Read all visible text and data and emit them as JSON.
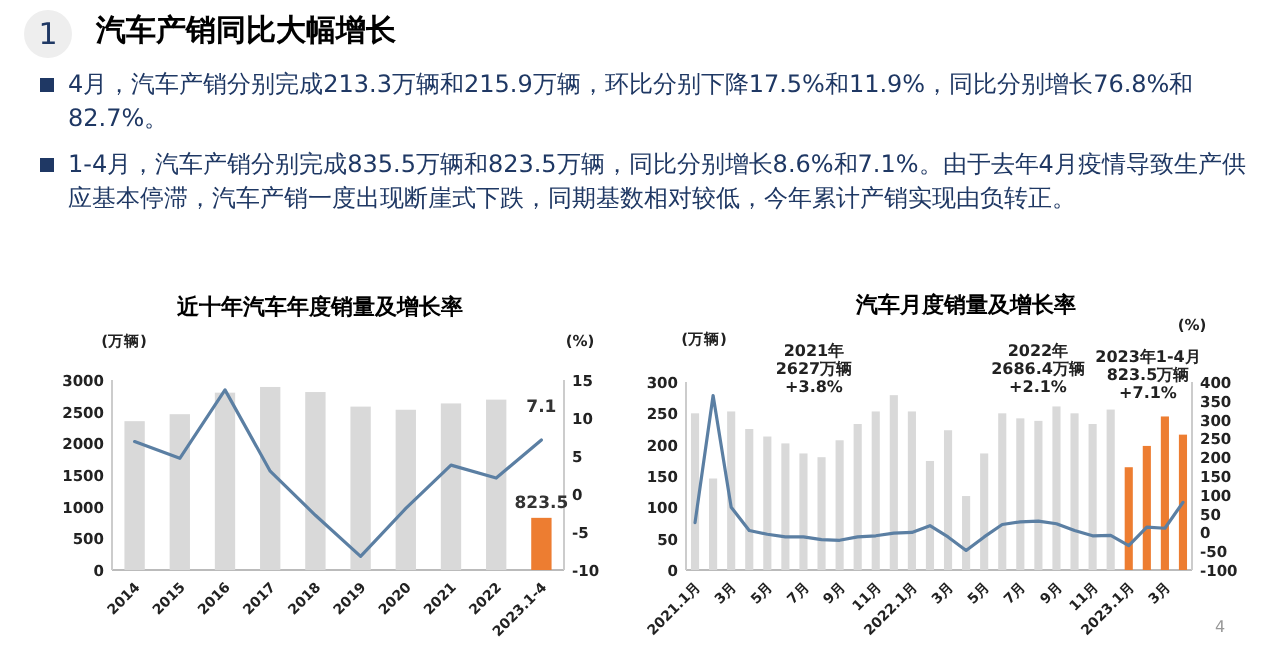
{
  "chart_data": [
    {
      "type": "bar",
      "title": "近十年汽车年度销量及增长率",
      "ylabel": "(万辆)",
      "y2label": "(%)",
      "annotations": [
        "1",
        "汽车产销同比大幅增长",
        "4月，汽车产销分别完成213.3万辆和215.9万辆，环比分别下降17.5%和11.9%，同比分别增长76.8%和82.7%。",
        "1-4月，汽车产销分别完成835.5万辆和823.5万辆，同比分别增长8.6%和7.1%。由于去年4月疫情导致生产供应基本停滞，汽车产销一度出现断崖式下跌，同期基数相对较低，今年累计产销实现由负转正。"
      ],
      "categories": [
        "2014",
        "2015",
        "2016",
        "2017",
        "2018",
        "2019",
        "2020",
        "2021",
        "2022",
        "2023.1-4"
      ],
      "series": [
        {
          "colors": [
            "#d9d9d9",
            "#d9d9d9",
            "#d9d9d9",
            "#d9d9d9",
            "#d9d9d9",
            "#d9d9d9",
            "#d9d9d9",
            "#d9d9d9",
            "#d9d9d9",
            "#ed7d31"
          ],
          "values": [
            2350,
            2460,
            2800,
            2890,
            2810,
            2580,
            2530,
            2630,
            2690,
            823.5
          ],
          "value_labels": [
            null,
            null,
            null,
            null,
            null,
            null,
            null,
            null,
            null,
            "823.5"
          ]
        },
        {
          "type": "line",
          "axis": "y2",
          "color": "#5b7fa3",
          "values": [
            6.9,
            4.7,
            13.7,
            3.0,
            -2.8,
            -8.2,
            -1.9,
            3.8,
            2.1,
            7.1
          ],
          "value_labels": [
            null,
            null,
            null,
            null,
            null,
            null,
            null,
            null,
            null,
            "7.1"
          ]
        }
      ],
      "ylim": [
        0,
        3000
      ],
      "yticks": [
        0,
        500,
        1000,
        1500,
        2000,
        2500,
        3000
      ],
      "y2lim": [
        -10,
        15
      ],
      "y2ticks": [
        -10,
        -5,
        0,
        5,
        10,
        15
      ],
      "grid": false,
      "marker": "none"
    },
    {
      "type": "bar",
      "title": "汽车月度销量及增长率",
      "ylabel": "(万辆)",
      "y2label": "(%)",
      "annotations": [
        "2021年\n2627万辆\n+3.8%",
        "2022年\n2686.4万辆\n+2.1%",
        "2023年1-4月\n823.5万辆\n+7.1%",
        "4"
      ],
      "categories": [
        "2021.1月",
        null,
        "3月",
        null,
        "5月",
        null,
        "7月",
        null,
        "9月",
        null,
        "11月",
        null,
        "2022.1月",
        null,
        "3月",
        null,
        "5月",
        null,
        "7月",
        null,
        "9月",
        null,
        "11月",
        null,
        "2023.1月",
        null,
        "3月",
        null
      ],
      "series": [
        {
          "colors": [
            "#d9d9d9",
            "#d9d9d9",
            "#d9d9d9",
            "#d9d9d9",
            "#d9d9d9",
            "#d9d9d9",
            "#d9d9d9",
            "#d9d9d9",
            "#d9d9d9",
            "#d9d9d9",
            "#d9d9d9",
            "#d9d9d9",
            "#d9d9d9",
            "#d9d9d9",
            "#d9d9d9",
            "#d9d9d9",
            "#d9d9d9",
            "#d9d9d9",
            "#d9d9d9",
            "#d9d9d9",
            "#d9d9d9",
            "#d9d9d9",
            "#d9d9d9",
            "#d9d9d9",
            "#ed7d31",
            "#ed7d31",
            "#ed7d31",
            "#ed7d31"
          ],
          "values": [
            250,
            146,
            253,
            225,
            213,
            202,
            186,
            180,
            207,
            233,
            253,
            279,
            253,
            174,
            223,
            118,
            186,
            250,
            242,
            238,
            261,
            250,
            233,
            256,
            164,
            198,
            245,
            216
          ]
        },
        {
          "type": "line",
          "axis": "y2",
          "color": "#5b7fa3",
          "values": [
            26,
            364,
            67,
            5,
            -5,
            -12,
            -12,
            -19,
            -21,
            -12,
            -9,
            -2,
            0,
            18,
            -12,
            -48,
            -12,
            21,
            28,
            30,
            23,
            5,
            -9,
            -8,
            -35,
            14,
            11,
            80
          ]
        }
      ],
      "ylim": [
        0,
        300
      ],
      "yticks": [
        0,
        50,
        100,
        150,
        200,
        250,
        300
      ],
      "y2lim": [
        -100,
        400
      ],
      "y2ticks": [
        -100,
        -50,
        0,
        50,
        100,
        150,
        200,
        250,
        300,
        350,
        400
      ],
      "grid": false,
      "marker": "none"
    }
  ]
}
